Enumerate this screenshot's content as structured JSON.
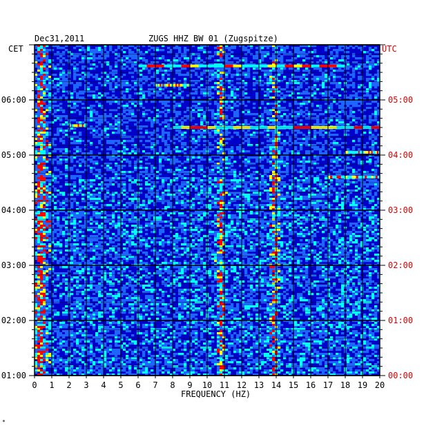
{
  "header": {
    "date": "Dec31,2011",
    "station": "ZUGS HHZ BW 01 (Zugspitze)"
  },
  "left_tz": "CET",
  "right_tz": "UTC",
  "corner_mark": "*",
  "chart_data": {
    "type": "heatmap",
    "xlabel": "FREQUENCY (HZ)",
    "xlim": [
      0,
      20
    ],
    "x_ticks": [
      "0",
      "1",
      "2",
      "3",
      "4",
      "5",
      "6",
      "7",
      "8",
      "9",
      "10",
      "11",
      "12",
      "13",
      "14",
      "15",
      "16",
      "17",
      "18",
      "19",
      "20"
    ],
    "time_range_cet_hours": [
      1,
      7
    ],
    "left_ticks": [
      "06:00",
      "05:00",
      "04:00",
      "03:00",
      "02:00",
      "01:00"
    ],
    "right_ticks": [
      "05:00",
      "04:00",
      "03:00",
      "02:00",
      "01:00",
      "00:00"
    ],
    "grid": true,
    "colors": {
      "low": "#0000c8",
      "mid": "#1e64ff",
      "high": "#00ffff",
      "higher": "#ffff00",
      "peak": "#ff0000",
      "grid": "#000000",
      "left_text": "#000000",
      "right_text": "#dd0000"
    },
    "persistent_lines_hz": [
      0.4,
      10.8,
      13.9
    ],
    "strong_events": [
      {
        "cet": "06:37",
        "hz_from": 6,
        "hz_to": 18
      },
      {
        "cet": "06:16",
        "hz_from": 7,
        "hz_to": 9
      },
      {
        "cet": "05:32",
        "hz_from": 2,
        "hz_to": 3
      },
      {
        "cet": "05:30",
        "hz_from": 8,
        "hz_to": 20
      },
      {
        "cet": "05:03",
        "hz_from": 18,
        "hz_to": 20
      },
      {
        "cet": "04:36",
        "hz_from": 17,
        "hz_to": 20
      }
    ]
  }
}
